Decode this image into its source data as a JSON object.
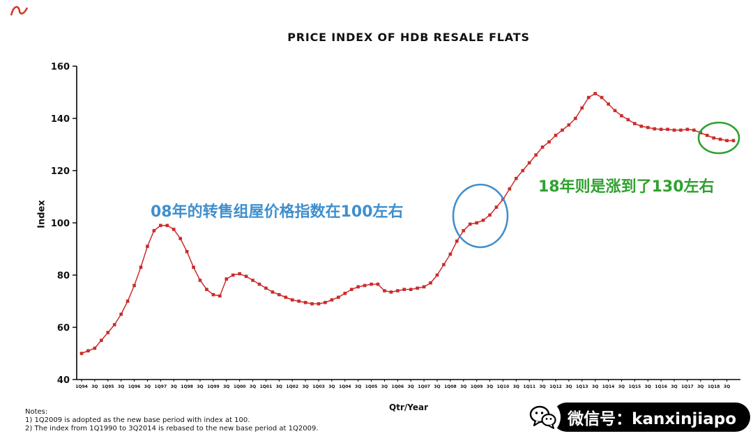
{
  "page": {
    "title": "PRICE INDEX OF HDB RESALE FLATS"
  },
  "chart_data": {
    "type": "line",
    "title": "PRICE INDEX OF HDB RESALE FLATS",
    "xlabel": "Qtr/Year",
    "ylabel": "Index",
    "ylim": [
      40,
      160
    ],
    "y_ticks": [
      40,
      60,
      80,
      100,
      120,
      140,
      160
    ],
    "x_tick_every": 2,
    "x_tick_labels": [
      "1Q94",
      "3Q",
      "1Q95",
      "3Q",
      "1Q96",
      "3Q",
      "1Q97",
      "3Q",
      "1Q98",
      "3Q",
      "1Q99",
      "3Q",
      "1Q00",
      "3Q",
      "1Q01",
      "3Q",
      "1Q02",
      "3Q",
      "1Q03",
      "3Q",
      "1Q04",
      "3Q",
      "1Q05",
      "3Q",
      "1Q06",
      "3Q",
      "1Q07",
      "3Q",
      "1Q08",
      "3Q",
      "1Q09",
      "3Q",
      "1Q10",
      "3Q",
      "1Q11",
      "3Q",
      "1Q12",
      "3Q",
      "1Q13",
      "3Q",
      "1Q14",
      "3Q",
      "1Q15",
      "3Q",
      "1Q16",
      "3Q",
      "1Q17",
      "3Q",
      "1Q18",
      "3Q"
    ],
    "values": [
      50,
      51,
      52,
      55,
      58,
      61,
      65,
      70,
      76,
      83,
      91,
      97,
      99,
      99,
      97.5,
      94,
      89,
      83,
      78,
      74.5,
      72.5,
      72,
      78.5,
      80,
      80.5,
      79.5,
      78,
      76.5,
      75,
      73.5,
      72.5,
      71.5,
      70.5,
      70,
      69.5,
      69,
      69,
      69.5,
      70.5,
      71.5,
      73,
      74.5,
      75.5,
      76,
      76.5,
      76.5,
      74,
      73.5,
      74,
      74.5,
      74.5,
      75,
      75.5,
      77,
      80,
      84,
      88,
      93,
      97,
      99.5,
      100,
      101,
      103,
      106,
      109,
      113,
      117,
      120,
      123,
      126,
      129,
      131,
      133.5,
      135.5,
      137.5,
      140,
      144,
      148,
      149.5,
      148,
      145.5,
      143,
      141,
      139.5,
      138,
      137,
      136.5,
      136,
      135.8,
      135.8,
      135.5,
      135.5,
      135.8,
      135.5,
      134.5,
      133.5,
      132.5,
      132,
      131.5,
      131.5
    ],
    "series_color": "#cc2b2b",
    "grid": false,
    "legend": "none"
  },
  "annotations": {
    "blue_note": {
      "text": "08年的转售组屋价格指数在100左右",
      "color": "#3f8fce"
    },
    "green_note": {
      "text": "18年则是涨到了130左右",
      "color": "#2fa12f"
    }
  },
  "notes": {
    "heading": "Notes:",
    "line1": "1) 1Q2009 is adopted as the new base period with index at 100.",
    "line2": "2) The index from 1Q1990 to 3Q2014 is rebased to the new base period at 1Q2009."
  },
  "watermark": {
    "text": "微信号：kanxinjiapo"
  }
}
